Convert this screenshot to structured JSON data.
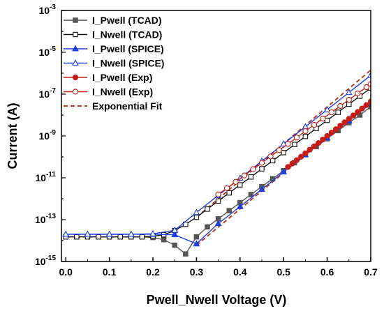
{
  "chart_data": {
    "type": "scatter",
    "title": "",
    "xlabel": "Pwell_Nwell Voltage (V)",
    "ylabel": "Current (A)",
    "xlim": [
      -0.01,
      0.7
    ],
    "ylim": [
      1e-15,
      0.001
    ],
    "yscale": "log",
    "grid": false,
    "legend_position": "top-left",
    "x_ticks": [
      0.0,
      0.1,
      0.2,
      0.3,
      0.4,
      0.5,
      0.6,
      0.7
    ],
    "x_tick_labels": [
      "0.0",
      "0.1",
      "0.2",
      "0.3",
      "0.4",
      "0.5",
      "0.6",
      "0.7"
    ],
    "y_ticks": [
      1e-15,
      1e-13,
      1e-11,
      1e-09,
      1e-07,
      1e-05,
      0.001
    ],
    "y_tick_labels": [
      {
        "base": "10",
        "exp": "-15"
      },
      {
        "base": "10",
        "exp": "-13"
      },
      {
        "base": "10",
        "exp": "-11"
      },
      {
        "base": "10",
        "exp": "-9"
      },
      {
        "base": "10",
        "exp": "-7"
      },
      {
        "base": "10",
        "exp": "-5"
      },
      {
        "base": "10",
        "exp": "-3"
      }
    ],
    "series": [
      {
        "name": "I_Pwell (TCAD)",
        "color": "#555555",
        "marker": "square-filled",
        "x": [
          0.0,
          0.025,
          0.05,
          0.075,
          0.1,
          0.125,
          0.15,
          0.175,
          0.2,
          0.225,
          0.25,
          0.275,
          0.3,
          0.325,
          0.35,
          0.375,
          0.4,
          0.425,
          0.45,
          0.475,
          0.5,
          0.525,
          0.55,
          0.575,
          0.6,
          0.625,
          0.65,
          0.675,
          0.7
        ],
        "y": [
          1.5e-14,
          1.5e-14,
          1.5e-14,
          1.5e-14,
          1.5e-14,
          1.5e-14,
          1.5e-14,
          1.5e-14,
          1.4e-14,
          1.1e-14,
          6e-15,
          2.3e-15,
          1.5e-14,
          4.5e-14,
          1.1e-13,
          2.7e-13,
          6.5e-13,
          1.6e-12,
          3.8e-12,
          9e-12,
          2.2e-11,
          5.3e-11,
          1.3e-10,
          3.1e-10,
          7.4e-10,
          1.8e-09,
          4.3e-09,
          1e-08,
          2.5e-08
        ]
      },
      {
        "name": "I_Nwell (TCAD)",
        "color": "#111111",
        "marker": "square-open",
        "x": [
          0.0,
          0.025,
          0.05,
          0.075,
          0.1,
          0.125,
          0.15,
          0.175,
          0.2,
          0.225,
          0.25,
          0.275,
          0.3,
          0.325,
          0.35,
          0.375,
          0.4,
          0.425,
          0.45,
          0.475,
          0.5,
          0.525,
          0.55,
          0.575,
          0.6,
          0.625,
          0.65,
          0.675,
          0.7
        ],
        "y": [
          1.5e-14,
          1.5e-14,
          1.5e-14,
          1.5e-14,
          1.5e-14,
          1.5e-14,
          1.5e-14,
          1.5e-14,
          1.6e-14,
          1.9e-14,
          3e-14,
          6e-14,
          1.3e-13,
          3.2e-13,
          7.8e-13,
          1.9e-12,
          4.6e-12,
          1.1e-11,
          2.7e-11,
          6.6e-11,
          1.6e-10,
          3.9e-10,
          9.5e-10,
          2.3e-09,
          5.6e-09,
          1.35e-08,
          3.3e-08,
          8e-08,
          1.95e-07
        ]
      },
      {
        "name": "I_Pwell (SPICE)",
        "color": "#1f3fe0",
        "marker": "triangle-filled",
        "x": [
          0.0,
          0.05,
          0.1,
          0.15,
          0.2,
          0.25,
          0.3,
          0.35,
          0.4,
          0.45,
          0.5,
          0.55,
          0.6,
          0.65,
          0.7
        ],
        "y": [
          2e-14,
          2e-14,
          2e-14,
          2e-14,
          2e-14,
          1.9e-14,
          7e-15,
          6.5e-14,
          4.2e-13,
          2.8e-12,
          1.9e-11,
          1.25e-10,
          8.2e-10,
          5.4e-09,
          3.5e-08
        ]
      },
      {
        "name": "I_Nwell (SPICE)",
        "color": "#1f3fe0",
        "marker": "triangle-open",
        "x": [
          0.0,
          0.05,
          0.1,
          0.15,
          0.2,
          0.25,
          0.3,
          0.35,
          0.4,
          0.45,
          0.5,
          0.55,
          0.6,
          0.65,
          0.7
        ],
        "y": [
          2e-14,
          2e-14,
          2e-14,
          2e-14,
          2.1e-14,
          3.1e-14,
          2.2e-13,
          1.45e-12,
          9.6e-12,
          6.3e-11,
          4.2e-10,
          2.75e-09,
          1.8e-08,
          1.2e-07,
          7.9e-07
        ]
      },
      {
        "name": "I_Pwell  (Exp)",
        "color": "#c41e16",
        "marker": "circle-filled",
        "x": [
          0.51,
          0.52,
          0.53,
          0.54,
          0.55,
          0.56,
          0.57,
          0.58,
          0.59,
          0.6,
          0.61,
          0.62,
          0.63,
          0.64,
          0.65,
          0.66,
          0.67,
          0.68,
          0.69,
          0.7
        ],
        "y": [
          3.3e-11,
          4.8e-11,
          7e-11,
          1.02e-10,
          1.5e-10,
          2.2e-10,
          3.2e-10,
          4.6e-10,
          6.8e-10,
          1e-09,
          1.45e-09,
          2.1e-09,
          3.1e-09,
          4.5e-09,
          6.6e-09,
          9.6e-09,
          1.4e-08,
          2.05e-08,
          3e-08,
          4.4e-08
        ]
      },
      {
        "name": "I_Nwell  (Exp)",
        "color": "#c41e16",
        "marker": "circle-open",
        "x": [
          0.35,
          0.37,
          0.39,
          0.41,
          0.43,
          0.45,
          0.47,
          0.49,
          0.51,
          0.53,
          0.55,
          0.57,
          0.59,
          0.61,
          0.63,
          0.65,
          0.67,
          0.69,
          0.7
        ],
        "y": [
          1.6e-12,
          3.2e-12,
          6.4e-12,
          1.3e-11,
          2.6e-11,
          5.2e-11,
          1.05e-10,
          2.1e-10,
          4.2e-10,
          8.4e-10,
          1.7e-09,
          3.4e-09,
          6.8e-09,
          1.35e-08,
          2.7e-08,
          5.4e-08,
          1.08e-07,
          2.15e-07,
          3e-07
        ]
      },
      {
        "name": "Exponential Fit",
        "color": "#b5402a",
        "marker": "dashed-line",
        "x": [
          0.3,
          0.7
        ],
        "y": [
          1.3e-13,
          1.4e-06
        ]
      }
    ],
    "fit_lines": [
      {
        "x": [
          0.3,
          0.7
        ],
        "y": [
          1.3e-13,
          1.4e-06
        ]
      },
      {
        "x": [
          0.3,
          0.7
        ],
        "y": [
          6e-15,
          5e-08
        ]
      }
    ]
  }
}
